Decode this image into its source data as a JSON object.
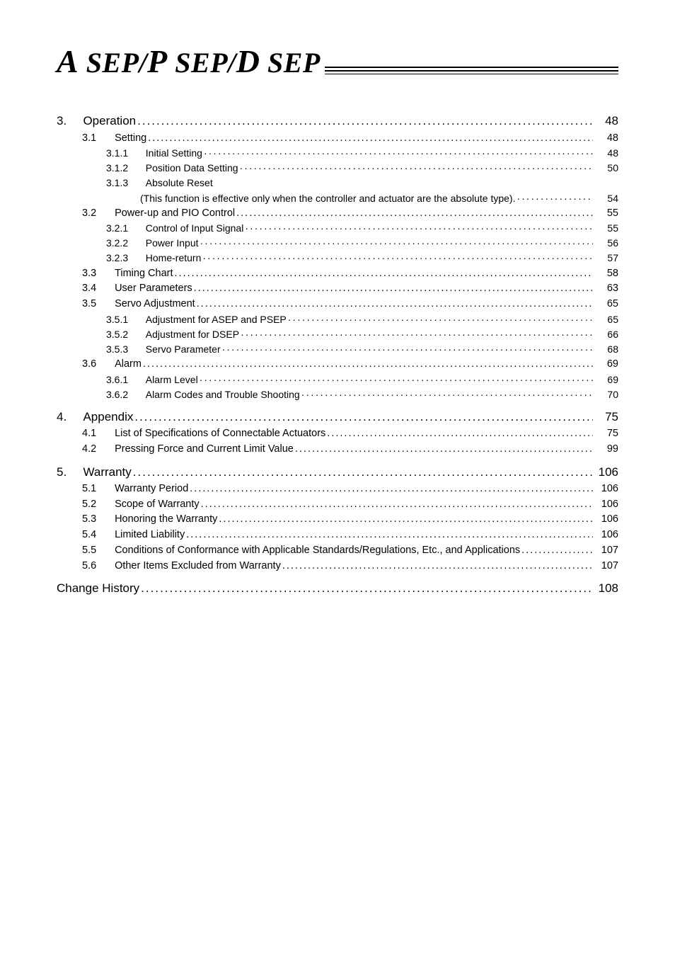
{
  "logo": {
    "text_html": "A SEP/P SEP/D SEP",
    "parts": [
      "A",
      " SEP/",
      "P",
      " SEP/",
      "D",
      " SEP"
    ]
  },
  "toc": {
    "s3": {
      "num": "3.",
      "title": "Operation",
      "page": "48",
      "s3_1": {
        "num": "3.1",
        "title": "Setting",
        "page": "48"
      },
      "s3_1_1": {
        "num": "3.1.1",
        "title": "Initial Setting",
        "page": "48"
      },
      "s3_1_2": {
        "num": "3.1.2",
        "title": "Position Data Setting",
        "page": "50"
      },
      "s3_1_3": {
        "num": "3.1.3",
        "title": "Absolute Reset",
        "page": ""
      },
      "s3_1_3_cont": {
        "title": "(This function is effective only when the controller and actuator are the absolute type).",
        "page": "54"
      },
      "s3_2": {
        "num": "3.2",
        "title": "Power-up and PIO Control",
        "page": "55"
      },
      "s3_2_1": {
        "num": "3.2.1",
        "title": "Control of Input Signal",
        "page": "55"
      },
      "s3_2_2": {
        "num": "3.2.2",
        "title": "Power Input",
        "page": "56"
      },
      "s3_2_3": {
        "num": "3.2.3",
        "title": "Home-return",
        "page": "57"
      },
      "s3_3": {
        "num": "3.3",
        "title": "Timing Chart",
        "page": "58"
      },
      "s3_4": {
        "num": "3.4",
        "title": "User Parameters",
        "page": "63"
      },
      "s3_5": {
        "num": "3.5",
        "title": "Servo Adjustment",
        "page": "65"
      },
      "s3_5_1": {
        "num": "3.5.1",
        "title": "Adjustment for ASEP and PSEP",
        "page": "65"
      },
      "s3_5_2": {
        "num": "3.5.2",
        "title": "Adjustment for DSEP",
        "page": "66"
      },
      "s3_5_3": {
        "num": "3.5.3",
        "title": "Servo Parameter",
        "page": "68"
      },
      "s3_6": {
        "num": "3.6",
        "title": "Alarm",
        "page": "69"
      },
      "s3_6_1": {
        "num": "3.6.1",
        "title": "Alarm Level",
        "page": "69"
      },
      "s3_6_2": {
        "num": "3.6.2",
        "title": "Alarm Codes and Trouble Shooting",
        "page": "70"
      }
    },
    "s4": {
      "num": "4.",
      "title": "Appendix",
      "page": "75",
      "s4_1": {
        "num": "4.1",
        "title": "List of Specifications of Connectable Actuators",
        "page": "75"
      },
      "s4_2": {
        "num": "4.2",
        "title": "Pressing Force and Current Limit Value",
        "page": "99"
      }
    },
    "s5": {
      "num": "5.",
      "title": "Warranty",
      "page": "106",
      "s5_1": {
        "num": "5.1",
        "title": "Warranty Period",
        "page": "106"
      },
      "s5_2": {
        "num": "5.2",
        "title": "Scope of Warranty",
        "page": "106"
      },
      "s5_3": {
        "num": "5.3",
        "title": "Honoring the Warranty",
        "page": "106"
      },
      "s5_4": {
        "num": "5.4",
        "title": "Limited Liability",
        "page": "106"
      },
      "s5_5": {
        "num": "5.5",
        "title": "Conditions of Conformance with Applicable Standards/Regulations, Etc., and Applications",
        "page": "107"
      },
      "s5_6": {
        "num": "5.6",
        "title": "Other Items Excluded from Warranty",
        "page": "107"
      }
    },
    "change_history": {
      "title": "Change History",
      "page": "108"
    }
  }
}
